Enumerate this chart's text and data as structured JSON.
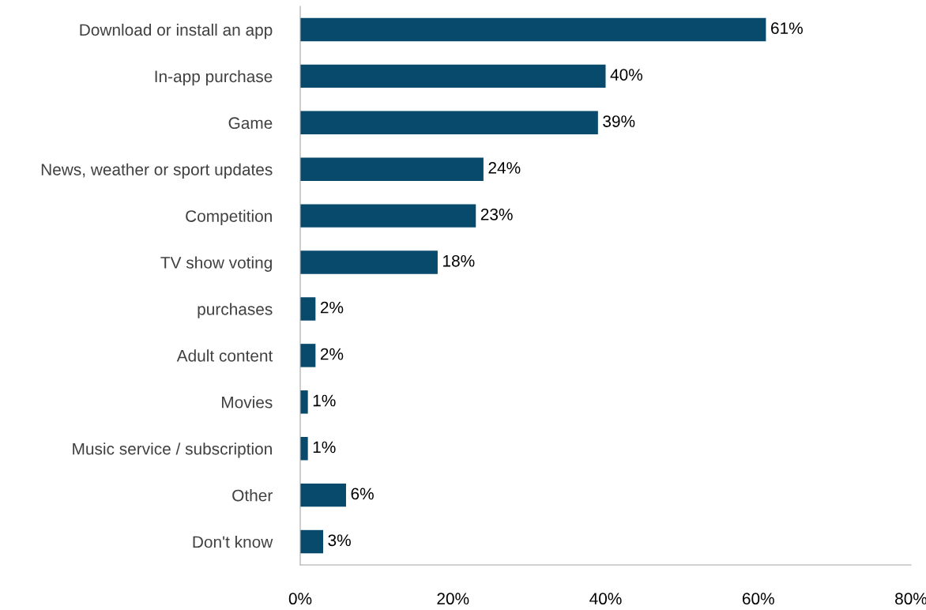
{
  "chart_data": {
    "type": "bar",
    "orientation": "horizontal",
    "categories": [
      "Download or install an app",
      "In-app purchase",
      "Game",
      "News, weather or sport updates",
      "Competition",
      "TV show voting",
      "purchases",
      "Adult content",
      "Movies",
      "Music service / subscription",
      "Other",
      "Don't know"
    ],
    "values": [
      61,
      40,
      39,
      24,
      23,
      18,
      2,
      2,
      1,
      1,
      6,
      3
    ],
    "value_labels": [
      "61%",
      "40%",
      "39%",
      "24%",
      "23%",
      "18%",
      "2%",
      "2%",
      "1%",
      "1%",
      "6%",
      "3%"
    ],
    "color": "#084a6b",
    "xlim": [
      0,
      80
    ],
    "xticks": [
      {
        "value": 0,
        "label": "0%"
      },
      {
        "value": 20,
        "label": "20%"
      },
      {
        "value": 40,
        "label": "40%"
      },
      {
        "value": 60,
        "label": "60%"
      },
      {
        "value": 80,
        "label": "80%"
      }
    ],
    "grid": false,
    "legend": false
  }
}
